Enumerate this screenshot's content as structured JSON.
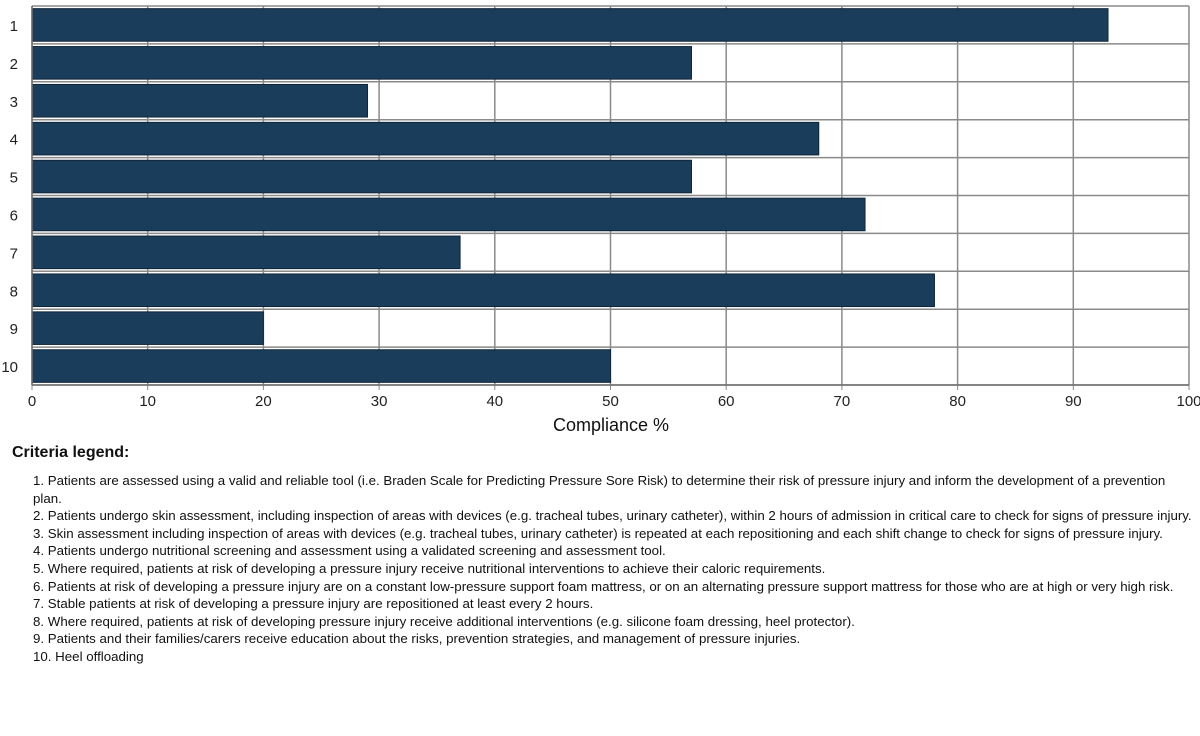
{
  "chart_data": {
    "type": "bar",
    "orientation": "horizontal",
    "categories": [
      "1",
      "2",
      "3",
      "4",
      "5",
      "6",
      "7",
      "8",
      "9",
      "10"
    ],
    "values": [
      93,
      57,
      29,
      68,
      57,
      72,
      37,
      78,
      20,
      50
    ],
    "xlabel": "Compliance %",
    "ylabel": "",
    "xlim": [
      0,
      100
    ],
    "xticks": [
      "0",
      "10",
      "20",
      "30",
      "40",
      "50",
      "60",
      "70",
      "80",
      "90",
      "100"
    ],
    "grid": true,
    "bar_color": "#1b3d5c"
  },
  "legend": {
    "title": "Criteria legend:",
    "items": [
      "1. Patients are assessed using a valid and reliable tool (i.e. Braden Scale for Predicting Pressure Sore Risk) to determine their risk of pressure injury and inform the development of a prevention plan.",
      "2. Patients undergo skin assessment, including inspection of areas with devices (e.g. tracheal tubes, urinary catheter), within 2 hours of admission in critical care to check for signs of pressure injury.",
      "3. Skin assessment including inspection of areas with devices (e.g. tracheal tubes, urinary catheter) is repeated at each repositioning and each shift change to check for signs of pressure injury.",
      "4. Patients undergo nutritional screening and assessment using a validated screening and assessment tool.",
      "5. Where required, patients at risk of developing a pressure injury receive nutritional interventions to achieve their caloric requirements.",
      "6. Patients at risk of developing a pressure injury are on a constant low-pressure support foam mattress, or on an alternating pressure support mattress for those who are at high or very high risk.",
      "7. Stable patients at risk of developing a pressure injury are repositioned at least every 2 hours.",
      "8. Where required, patients at risk of developing pressure injury receive additional interventions (e.g. silicone foam dressing, heel protector).",
      "9. Patients and their families/carers receive education about the risks, prevention strategies, and management of pressure injuries.",
      "10. Heel offloading"
    ]
  }
}
